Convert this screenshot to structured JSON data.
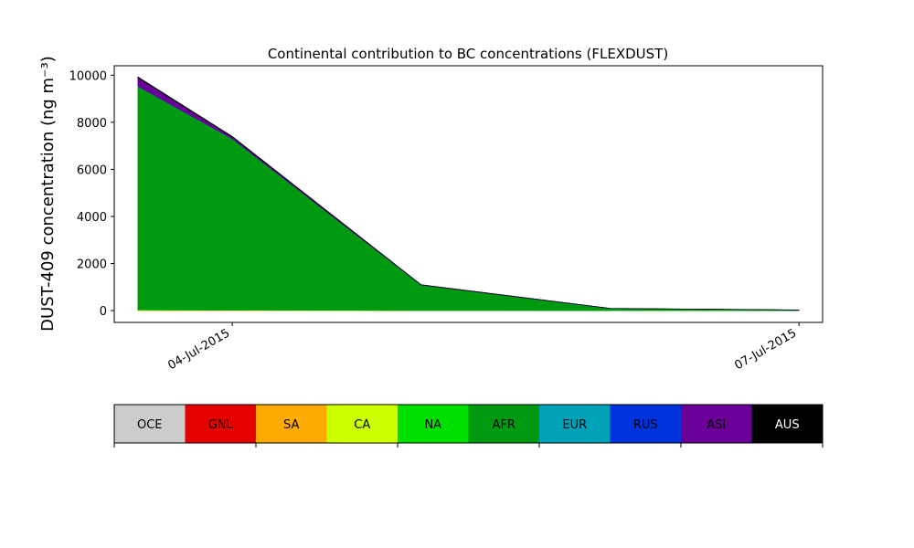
{
  "chart_data": {
    "type": "area",
    "stacked": true,
    "title": "Continental contribution to BC concentrations (FLEXDUST)",
    "ylabel": "DUST-409 concentration (ng m⁻³)",
    "xlabel": "",
    "x": [
      "2015-07-03T12:00",
      "2015-07-04T00:00",
      "2015-07-05T00:00",
      "2015-07-06T00:00",
      "2015-07-07T00:00"
    ],
    "xlim": [
      "2015-07-03T09:00",
      "2015-07-07T03:00"
    ],
    "ylim": [
      -500,
      10400
    ],
    "xticks": [
      {
        "x": "2015-07-04T00:00",
        "label": "04-Jul-2015"
      },
      {
        "x": "2015-07-07T00:00",
        "label": "07-Jul-2015"
      }
    ],
    "yticks": [
      0,
      2000,
      4000,
      6000,
      8000,
      10000
    ],
    "grid": false,
    "series": [
      {
        "name": "OCE",
        "color": "#cccccc",
        "values": [
          0,
          0,
          0,
          0,
          0
        ]
      },
      {
        "name": "GNL",
        "color": "#e60000",
        "values": [
          0,
          0,
          0,
          0,
          0
        ]
      },
      {
        "name": "SA",
        "color": "#ffaa00",
        "values": [
          10,
          5,
          2,
          1,
          0
        ]
      },
      {
        "name": "CA",
        "color": "#ccff00",
        "values": [
          20,
          10,
          5,
          2,
          1
        ]
      },
      {
        "name": "NA",
        "color": "#00e000",
        "values": [
          0,
          0,
          0,
          0,
          0
        ]
      },
      {
        "name": "AFR",
        "color": "#009a10",
        "values": [
          9500,
          7280,
          1080,
          90,
          25
        ]
      },
      {
        "name": "EUR",
        "color": "#00a2b8",
        "values": [
          0,
          0,
          0,
          0,
          0
        ]
      },
      {
        "name": "RUS",
        "color": "#0033dd",
        "values": [
          10,
          5,
          0,
          0,
          0
        ]
      },
      {
        "name": "ASI",
        "color": "#6a0099",
        "values": [
          350,
          70,
          5,
          2,
          1
        ]
      },
      {
        "name": "AUS",
        "color": "#000000",
        "values": [
          40,
          30,
          10,
          5,
          3
        ]
      }
    ],
    "colorbar": {
      "labels": [
        "OCE",
        "GNL",
        "SA",
        "CA",
        "NA",
        "AFR",
        "EUR",
        "RUS",
        "ASI",
        "AUS"
      ],
      "text_colors": [
        "#000000",
        "#000000",
        "#000000",
        "#000000",
        "#000000",
        "#000000",
        "#000000",
        "#000000",
        "#000000",
        "#ffffff"
      ]
    }
  }
}
